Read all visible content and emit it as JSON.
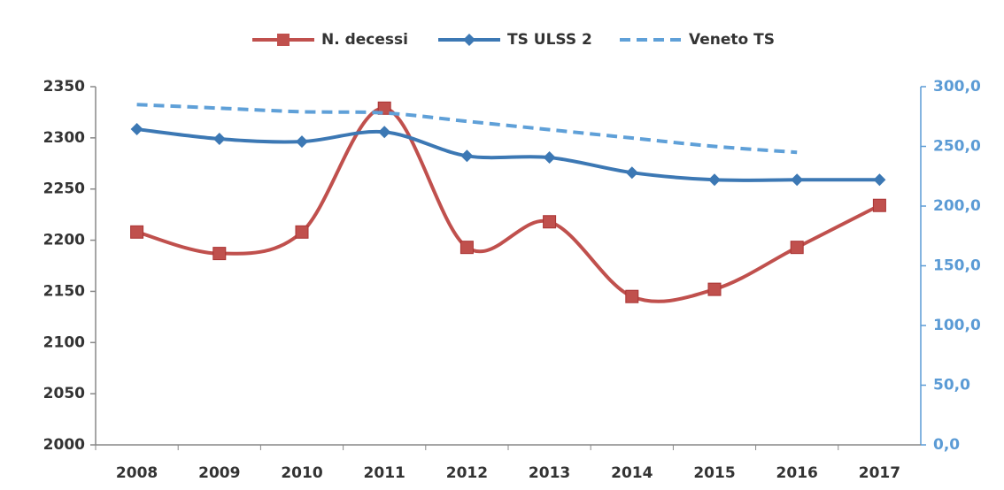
{
  "chart_data": {
    "type": "line",
    "categories": [
      "2008",
      "2009",
      "2010",
      "2011",
      "2012",
      "2013",
      "2014",
      "2015",
      "2016",
      "2017"
    ],
    "series": [
      {
        "name": "N. decessi",
        "color": "#c0504d",
        "marker": "square",
        "values": [
          2208,
          2187,
          2208,
          2329,
          2193,
          2218,
          2145,
          2152,
          2193,
          2234
        ]
      },
      {
        "name": "TS ULSS 2",
        "color": "#3c78b4",
        "marker": "diamond",
        "axis": "y2",
        "values": [
          264.4,
          256.3,
          254,
          262,
          242,
          240.7,
          228,
          222,
          222,
          222
        ]
      },
      {
        "name": "Veneto TS",
        "color": "#5fa0d8",
        "dashed": true,
        "axis": "y2",
        "values": [
          285,
          282,
          279,
          278,
          271,
          264,
          257,
          250,
          245,
          null
        ]
      }
    ],
    "ylim": [
      2000,
      2350
    ],
    "yticks": [
      2000,
      2050,
      2100,
      2150,
      2200,
      2250,
      2300,
      2350
    ],
    "y2lim": [
      0,
      300
    ],
    "y2ticks": [
      {
        "value": 0,
        "label": "0,0"
      },
      {
        "value": 50,
        "label": "50,0"
      },
      {
        "value": 100,
        "label": "100,0"
      },
      {
        "value": 150,
        "label": "150,0"
      },
      {
        "value": 200,
        "label": "200,0"
      },
      {
        "value": 250,
        "label": "250,0"
      },
      {
        "value": 300,
        "label": "300,0"
      }
    ],
    "legend": "top",
    "grid": false
  }
}
